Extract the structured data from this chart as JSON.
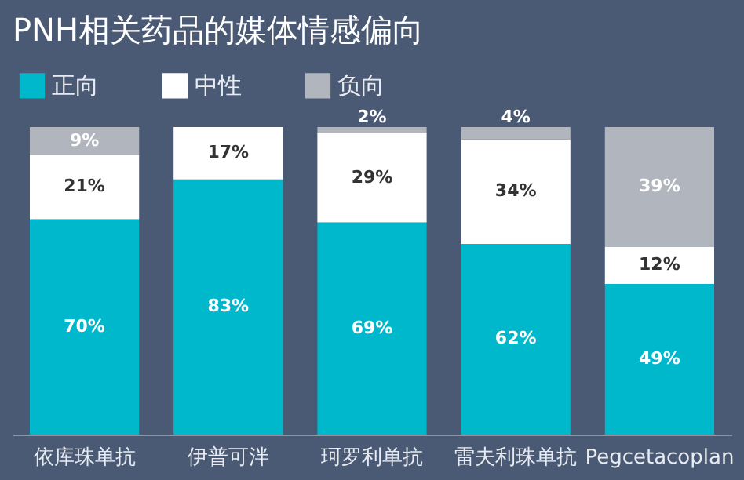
{
  "chart_data": {
    "type": "bar",
    "stacked": true,
    "title": "PNH相关药品的媒体情感偏向",
    "categories": [
      "依库珠单抗",
      "伊普可泮",
      "珂罗利单抗",
      "雷夫利珠单抗",
      "Pegcetacoplan"
    ],
    "series": [
      {
        "name": "正向",
        "color": "#00b8cc",
        "values": [
          70,
          83,
          69,
          62,
          49
        ],
        "value_labels": [
          "70%",
          "83%",
          "69%",
          "62%",
          "49%"
        ]
      },
      {
        "name": "中性",
        "color": "#ffffff",
        "values": [
          21,
          17,
          29,
          34,
          12
        ],
        "value_labels": [
          "21%",
          "17%",
          "29%",
          "34%",
          "12%"
        ]
      },
      {
        "name": "负向",
        "color": "#b1b5be",
        "values": [
          9,
          null,
          2,
          4,
          39
        ],
        "value_labels": [
          "9%",
          null,
          "2%",
          "4%",
          "39%"
        ]
      }
    ],
    "legend": "top"
  }
}
